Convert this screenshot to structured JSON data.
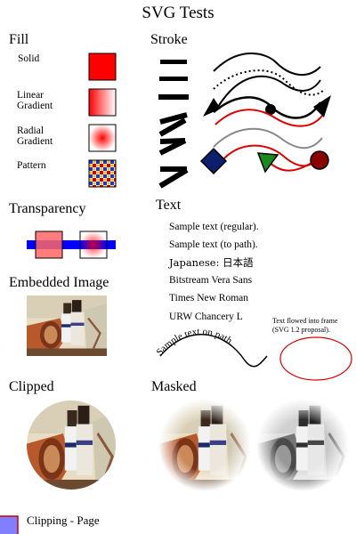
{
  "page": {
    "title": "SVG Tests"
  },
  "fill": {
    "heading": "Fill",
    "labels": {
      "solid": "Solid",
      "linear": "Linear\nGradient",
      "radial": "Radial\nGradient",
      "pattern": "Pattern"
    },
    "colors": {
      "solid": "#ff0000",
      "stroke": "#000000"
    }
  },
  "stroke": {
    "heading": "Stroke",
    "colors": {
      "red": "#dd0000",
      "gray": "#888888",
      "diamond": "#0b1f6e",
      "triangle": "#1a8a1a",
      "circle": "#8b0000"
    }
  },
  "transparency": {
    "heading": "Transparency",
    "colors": {
      "bar": "#0000ff",
      "square": "#ff6666"
    }
  },
  "text": {
    "heading": "Text",
    "lines": [
      "Sample text (regular).",
      "Sample text (to path).",
      "Japanese: 日本語",
      "Bitstream Vera Sans",
      "Times New Roman",
      "URW Chancery L"
    ],
    "path_text": "Sample text on path.",
    "flowed": "Text flowed into frame (SVG 1.2 proposal)."
  },
  "embedded": {
    "heading": "Embedded Image"
  },
  "clipped": {
    "heading": "Clipped"
  },
  "masked": {
    "heading": "Masked"
  },
  "clipping_page": {
    "label": "Clipping - Page",
    "color": "#8080ff"
  }
}
